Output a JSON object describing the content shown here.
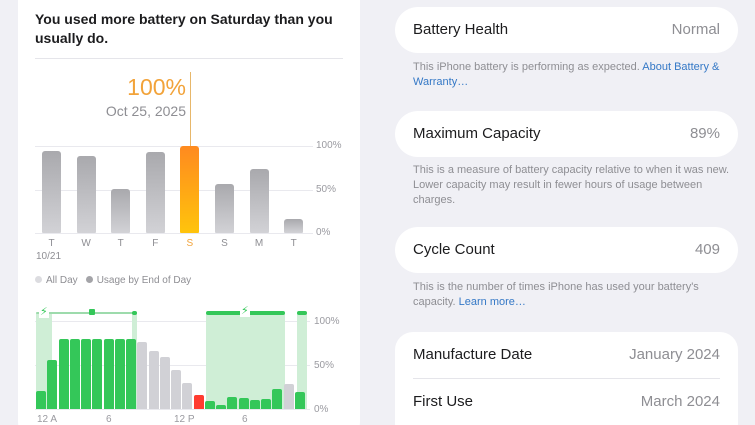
{
  "insight": {
    "text": "You used more battery on Saturday than you usually do."
  },
  "selection": {
    "value": "100%",
    "date": "Oct 25, 2025"
  },
  "chart_data": [
    {
      "type": "bar",
      "title": "Daily battery usage",
      "categories": [
        "T",
        "W",
        "T",
        "F",
        "S",
        "S",
        "M",
        "T"
      ],
      "first_date_label": "10/21",
      "selected_index": 4,
      "values": [
        94,
        89,
        51,
        93,
        100,
        56,
        73,
        16
      ],
      "y_ticks": [
        "100%",
        "50%",
        "0%"
      ],
      "ylim": [
        0,
        100
      ],
      "legend": [
        "All Day",
        "Usage by End of Day"
      ],
      "colors": {
        "default": "#b4b4b8",
        "selected": "#ff9f0a"
      }
    },
    {
      "type": "bar",
      "title": "Hourly battery level",
      "x_tick_labels": [
        "12 A",
        "6",
        "12 P",
        "6"
      ],
      "y_ticks": [
        "100%",
        "50%",
        "0%"
      ],
      "ylim": [
        0,
        100
      ],
      "bars": [
        {
          "v": 20,
          "c": "green"
        },
        {
          "v": 56,
          "c": "green"
        },
        {
          "v": 80,
          "c": "green"
        },
        {
          "v": 80,
          "c": "green"
        },
        {
          "v": 80,
          "c": "green"
        },
        {
          "v": 80,
          "c": "green"
        },
        {
          "v": 80,
          "c": "green"
        },
        {
          "v": 80,
          "c": "green"
        },
        {
          "v": 80,
          "c": "green"
        },
        {
          "v": 76,
          "c": "gray"
        },
        {
          "v": 66,
          "c": "gray"
        },
        {
          "v": 59,
          "c": "gray"
        },
        {
          "v": 44,
          "c": "gray"
        },
        {
          "v": 29,
          "c": "gray"
        },
        {
          "v": 16,
          "c": "red"
        },
        {
          "v": 9,
          "c": "green"
        },
        {
          "v": 5,
          "c": "green"
        },
        {
          "v": 14,
          "c": "green"
        },
        {
          "v": 13,
          "c": "green"
        },
        {
          "v": 10,
          "c": "green"
        },
        {
          "v": 11,
          "c": "green"
        },
        {
          "v": 23,
          "c": "green"
        },
        {
          "v": 28,
          "c": "gray"
        },
        {
          "v": 19,
          "c": "green"
        }
      ],
      "charging_periods": [
        {
          "start_hour": 0,
          "end_hour": 1.3
        },
        {
          "start_hour": 8.6,
          "end_hour": 9.1
        },
        {
          "start_hour": 15,
          "end_hour": 22
        },
        {
          "start_hour": 23,
          "end_hour": 24
        }
      ],
      "colors": {
        "charging": "#34c759",
        "low": "#ff3b30",
        "idle": "#d1d1d6",
        "charge_region": "#cfeed6"
      }
    }
  ],
  "daily_chart": {
    "y_labels": [
      "100%",
      "50%",
      "0%"
    ],
    "day_labels": [
      "T",
      "W",
      "T",
      "F",
      "S",
      "S",
      "M",
      "T"
    ],
    "first_date": "10/21",
    "legend": {
      "all_day": "All Day",
      "usage_end": "Usage by End of Day"
    }
  },
  "hourly_chart": {
    "y_labels": [
      "100%",
      "50%",
      "0%"
    ],
    "x_labels": [
      "12 A",
      "6",
      "12 P",
      "6"
    ],
    "bolt_icon": "⚡"
  },
  "battery_health": {
    "label": "Battery Health",
    "value": "Normal",
    "note": "This iPhone battery is performing as expected. ",
    "link": "About Battery & Warranty…"
  },
  "max_capacity": {
    "label": "Maximum Capacity",
    "value": "89%",
    "note": "This is a measure of battery capacity relative to when it was new. Lower capacity may result in fewer hours of usage between charges."
  },
  "cycle_count": {
    "label": "Cycle Count",
    "value": "409",
    "note": "This is the number of times iPhone has used your battery's capacity. ",
    "link": "Learn more…"
  },
  "dates": {
    "manufacture_label": "Manufacture Date",
    "manufacture_value": "January 2024",
    "first_use_label": "First Use",
    "first_use_value": "March 2024"
  },
  "colors": {
    "background": "#f0f0f5",
    "card": "#ffffff",
    "accent_orange": "#f2a33a",
    "link_blue": "#3478c6",
    "green": "#34c759",
    "red": "#ff3b30"
  }
}
